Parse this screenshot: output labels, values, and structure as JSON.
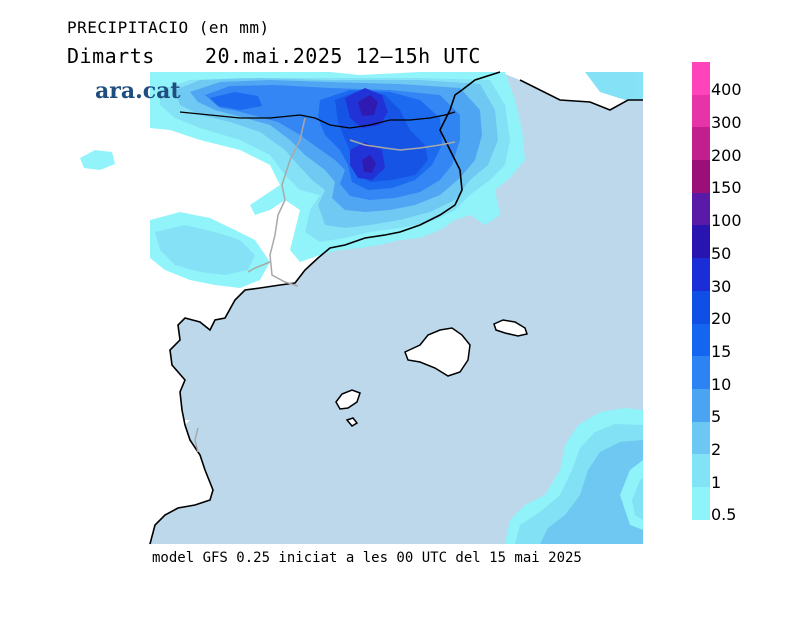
{
  "title_line1": "PRECIPITACIO (en mm)",
  "title_line2": "Dimarts    20.mai.2025 12–15h UTC",
  "brand": "ara.cat",
  "footer": "model GFS 0.25 iniciat a les 00 UTC del 15 mai 2025",
  "legend": [
    {
      "label": "400",
      "color": "#ff44bb"
    },
    {
      "label": "300",
      "color": "#e633a8"
    },
    {
      "label": "200",
      "color": "#c21f8e"
    },
    {
      "label": "150",
      "color": "#9a0f78"
    },
    {
      "label": "100",
      "color": "#5a1aa8"
    },
    {
      "label": "50",
      "color": "#2a14b0"
    },
    {
      "label": "30",
      "color": "#1a2dd6"
    },
    {
      "label": "20",
      "color": "#0f4fe6"
    },
    {
      "label": "15",
      "color": "#1466f0"
    },
    {
      "label": "10",
      "color": "#2d83f4"
    },
    {
      "label": "5",
      "color": "#4ba4f2"
    },
    {
      "label": "2",
      "color": "#6cc8f2"
    },
    {
      "label": "1",
      "color": "#82e2f6"
    },
    {
      "label": "0.5",
      "color": "#8ef4fa"
    }
  ],
  "colors": {
    "sea": "#bcd8ea",
    "land": "#ffffff",
    "coast": "#000000",
    "border": "#a8a8a8"
  }
}
